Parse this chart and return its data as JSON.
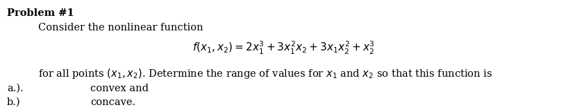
{
  "background_color": "#ffffff",
  "title": "Problem #1",
  "line1": "Consider the nonlinear function",
  "formula": "$\\mathit{f}(x_1,x_2) = 2x_1^3 + 3x_1^2x_2 + 3x_1x_2^2 + x_2^3$",
  "line2": "for all points $(x_1,x_2)$. Determine the range of values for $x_1$ and $x_2$ so that this function is",
  "label_a": "a.).",
  "label_b": "b.)",
  "text_a": "convex and",
  "text_b": "concave.",
  "title_fontsize": 10.5,
  "body_fontsize": 10.5,
  "formula_fontsize": 11
}
